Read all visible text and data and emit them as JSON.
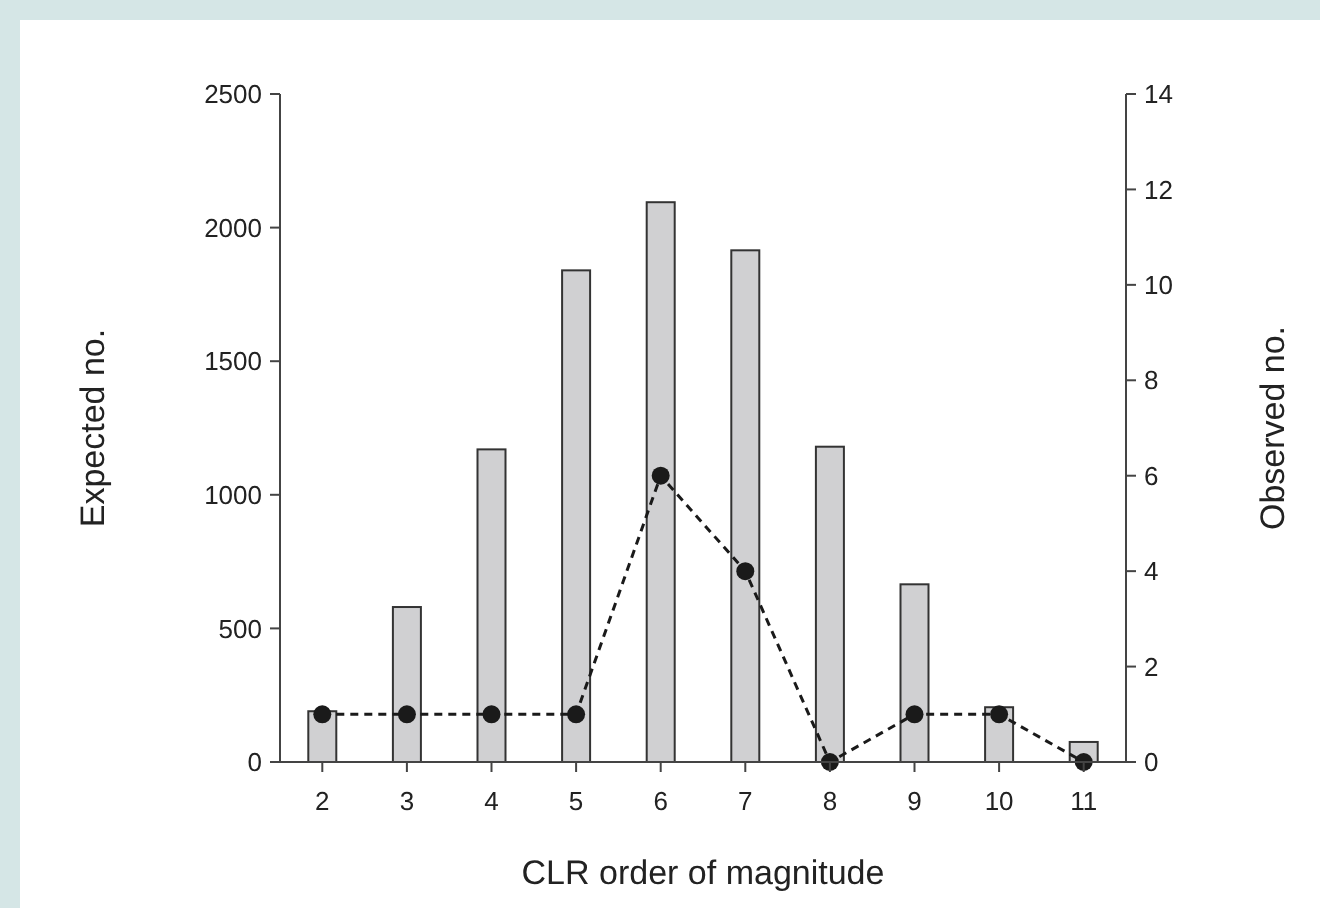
{
  "chart_data": {
    "type": "bar",
    "xlabel": "CLR order of magnitude",
    "ylabel": "Expected no.",
    "y2label": "Observed no.",
    "categories": [
      "2",
      "3",
      "4",
      "5",
      "6",
      "7",
      "8",
      "9",
      "10",
      "11"
    ],
    "series": [
      {
        "color": "#d0d0d2",
        "values": [
          190,
          580,
          1170,
          1840,
          2095,
          1915,
          1180,
          665,
          205,
          75
        ]
      },
      {
        "type": "line",
        "axis": "y2",
        "color": "#1a1a1a",
        "marker": "circle",
        "line_style": "dashed",
        "values": [
          1,
          1,
          1,
          1,
          6,
          4,
          0,
          1,
          1,
          0
        ]
      }
    ],
    "ylim": [
      0,
      2500
    ],
    "yticks": [
      0,
      500,
      1000,
      1500,
      2000,
      2500
    ],
    "y2lim": [
      0,
      14
    ],
    "y2ticks": [
      0,
      2,
      4,
      6,
      8,
      10,
      12,
      14
    ],
    "grid": false
  }
}
